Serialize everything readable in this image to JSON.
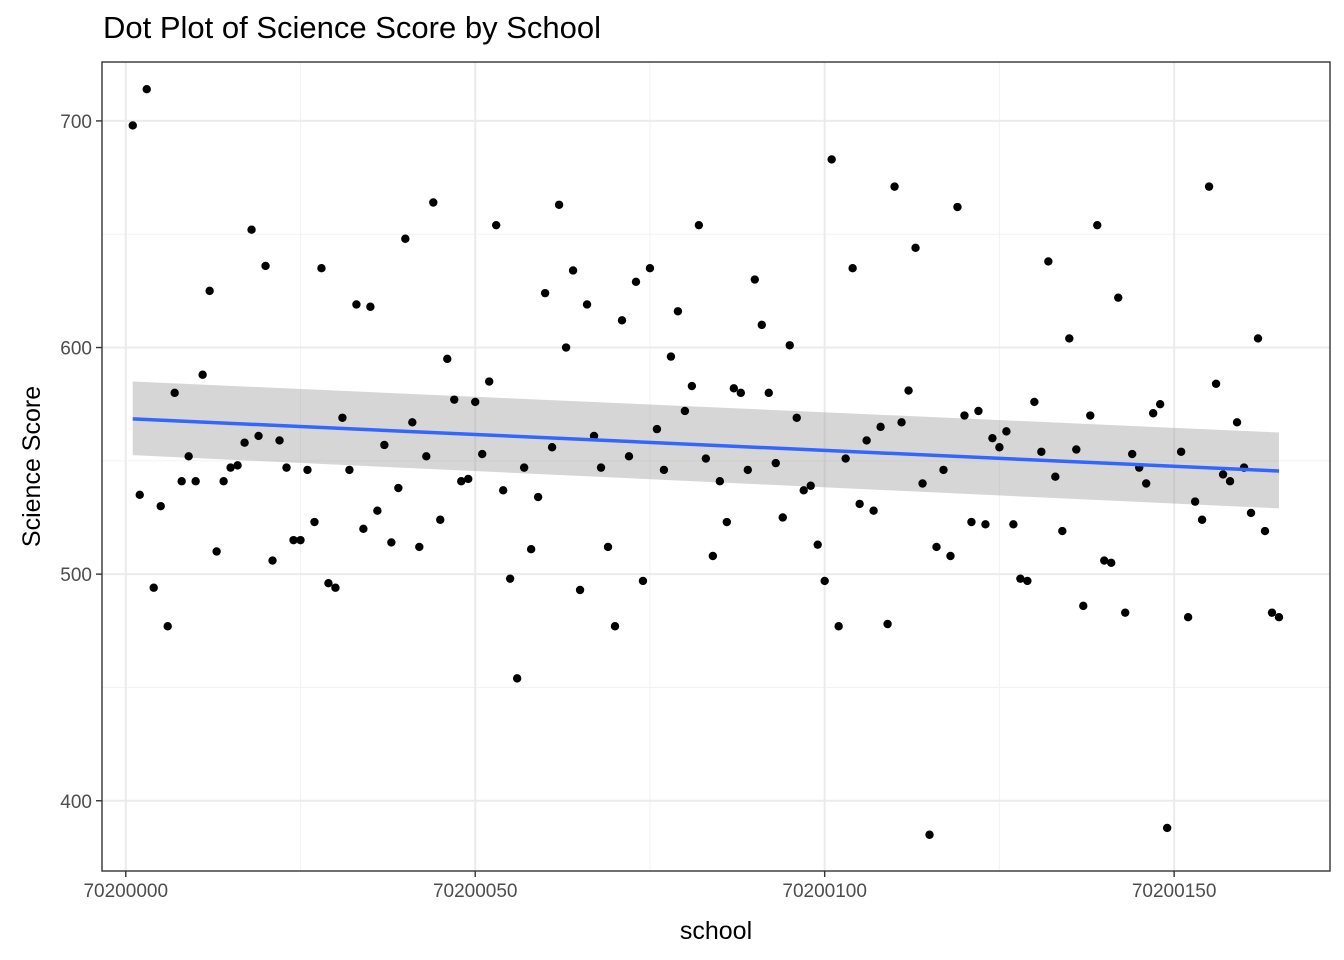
{
  "chart_data": {
    "type": "scatter",
    "title": "Dot Plot of Science Score by School",
    "xlabel": "school",
    "ylabel": "Science Score",
    "xlim": [
      69999997.5,
      70200170.5
    ],
    "xlim_note": "",
    "x_domain": [
      70199996.6,
      70200172.3
    ],
    "y_domain": [
      369.0,
      726.0
    ],
    "x_ticks": [
      70200000,
      70200050,
      70200100,
      70200150
    ],
    "x_tick_labels": [
      "70200000",
      "70200050",
      "70200100",
      "70200150"
    ],
    "y_ticks": [
      400,
      500,
      600,
      700
    ],
    "y_tick_labels": [
      "400",
      "500",
      "600",
      "700"
    ],
    "grid": true,
    "theme": "bw",
    "points": [
      [
        70200001,
        698
      ],
      [
        70200002,
        535
      ],
      [
        70200003,
        714
      ],
      [
        70200004,
        494
      ],
      [
        70200005,
        530
      ],
      [
        70200006,
        477
      ],
      [
        70200007,
        580
      ],
      [
        70200008,
        541
      ],
      [
        70200009,
        552
      ],
      [
        70200010,
        541
      ],
      [
        70200011,
        588
      ],
      [
        70200012,
        625
      ],
      [
        70200013,
        510
      ],
      [
        70200014,
        541
      ],
      [
        70200015,
        547
      ],
      [
        70200016,
        548
      ],
      [
        70200017,
        558
      ],
      [
        70200018,
        652
      ],
      [
        70200019,
        561
      ],
      [
        70200020,
        636
      ],
      [
        70200021,
        506
      ],
      [
        70200022,
        559
      ],
      [
        70200023,
        547
      ],
      [
        70200024,
        515
      ],
      [
        70200025,
        515
      ],
      [
        70200026,
        546
      ],
      [
        70200027,
        523
      ],
      [
        70200028,
        635
      ],
      [
        70200029,
        496
      ],
      [
        70200030,
        494
      ],
      [
        70200031,
        569
      ],
      [
        70200032,
        546
      ],
      [
        70200033,
        619
      ],
      [
        70200034,
        520
      ],
      [
        70200035,
        618
      ],
      [
        70200036,
        528
      ],
      [
        70200037,
        557
      ],
      [
        70200038,
        514
      ],
      [
        70200039,
        538
      ],
      [
        70200040,
        648
      ],
      [
        70200041,
        567
      ],
      [
        70200042,
        512
      ],
      [
        70200043,
        552
      ],
      [
        70200044,
        664
      ],
      [
        70200045,
        524
      ],
      [
        70200046,
        595
      ],
      [
        70200047,
        577
      ],
      [
        70200048,
        541
      ],
      [
        70200049,
        542
      ],
      [
        70200050,
        576
      ],
      [
        70200051,
        553
      ],
      [
        70200052,
        585
      ],
      [
        70200053,
        654
      ],
      [
        70200054,
        537
      ],
      [
        70200055,
        498
      ],
      [
        70200056,
        454
      ],
      [
        70200057,
        547
      ],
      [
        70200058,
        511
      ],
      [
        70200059,
        534
      ],
      [
        70200060,
        624
      ],
      [
        70200061,
        556
      ],
      [
        70200062,
        663
      ],
      [
        70200063,
        600
      ],
      [
        70200064,
        634
      ],
      [
        70200065,
        493
      ],
      [
        70200066,
        619
      ],
      [
        70200067,
        561
      ],
      [
        70200068,
        547
      ],
      [
        70200069,
        512
      ],
      [
        70200070,
        477
      ],
      [
        70200071,
        612
      ],
      [
        70200072,
        552
      ],
      [
        70200073,
        629
      ],
      [
        70200074,
        497
      ],
      [
        70200075,
        635
      ],
      [
        70200076,
        564
      ],
      [
        70200077,
        546
      ],
      [
        70200078,
        596
      ],
      [
        70200079,
        616
      ],
      [
        70200080,
        572
      ],
      [
        70200081,
        583
      ],
      [
        70200082,
        654
      ],
      [
        70200083,
        551
      ],
      [
        70200084,
        508
      ],
      [
        70200085,
        541
      ],
      [
        70200086,
        523
      ],
      [
        70200087,
        582
      ],
      [
        70200088,
        580
      ],
      [
        70200089,
        546
      ],
      [
        70200090,
        630
      ],
      [
        70200091,
        610
      ],
      [
        70200092,
        580
      ],
      [
        70200093,
        549
      ],
      [
        70200094,
        525
      ],
      [
        70200095,
        601
      ],
      [
        70200096,
        569
      ],
      [
        70200097,
        537
      ],
      [
        70200098,
        539
      ],
      [
        70200099,
        513
      ],
      [
        70200100,
        497
      ],
      [
        70200101,
        683
      ],
      [
        70200102,
        477
      ],
      [
        70200103,
        551
      ],
      [
        70200104,
        635
      ],
      [
        70200105,
        531
      ],
      [
        70200106,
        559
      ],
      [
        70200107,
        528
      ],
      [
        70200108,
        565
      ],
      [
        70200109,
        478
      ],
      [
        70200110,
        671
      ],
      [
        70200111,
        567
      ],
      [
        70200112,
        581
      ],
      [
        70200113,
        644
      ],
      [
        70200114,
        540
      ],
      [
        70200115,
        385
      ],
      [
        70200116,
        512
      ],
      [
        70200117,
        546
      ],
      [
        70200118,
        508
      ],
      [
        70200119,
        662
      ],
      [
        70200120,
        570
      ],
      [
        70200121,
        523
      ],
      [
        70200122,
        572
      ],
      [
        70200123,
        522
      ],
      [
        70200124,
        560
      ],
      [
        70200125,
        556
      ],
      [
        70200126,
        563
      ],
      [
        70200127,
        522
      ],
      [
        70200128,
        498
      ],
      [
        70200129,
        497
      ],
      [
        70200130,
        576
      ],
      [
        70200131,
        554
      ],
      [
        70200132,
        638
      ],
      [
        70200133,
        543
      ],
      [
        70200134,
        519
      ],
      [
        70200135,
        604
      ],
      [
        70200136,
        555
      ],
      [
        70200137,
        486
      ],
      [
        70200138,
        570
      ],
      [
        70200139,
        654
      ],
      [
        70200140,
        506
      ],
      [
        70200141,
        505
      ],
      [
        70200142,
        622
      ],
      [
        70200143,
        483
      ],
      [
        70200144,
        553
      ],
      [
        70200145,
        547
      ],
      [
        70200146,
        540
      ],
      [
        70200147,
        571
      ],
      [
        70200148,
        575
      ],
      [
        70200149,
        388
      ],
      [
        70200151,
        554
      ],
      [
        70200152,
        481
      ],
      [
        70200153,
        532
      ],
      [
        70200154,
        524
      ],
      [
        70200155,
        671
      ],
      [
        70200156,
        584
      ],
      [
        70200157,
        544
      ],
      [
        70200158,
        541
      ],
      [
        70200159,
        567
      ],
      [
        70200160,
        547
      ],
      [
        70200161,
        527
      ],
      [
        70200162,
        604
      ],
      [
        70200163,
        519
      ],
      [
        70200164,
        483
      ],
      [
        70200165,
        481
      ]
    ],
    "smooth": {
      "method": "lm",
      "x": [
        70200001,
        70200165
      ],
      "fit": [
        568.5,
        545.5
      ],
      "ci_lower": [
        552.5,
        529.0
      ],
      "ci_upper": [
        585.0,
        562.5
      ],
      "line_color": "#3366ff",
      "ribbon_color": "#999999"
    },
    "point_color": "#000000"
  }
}
